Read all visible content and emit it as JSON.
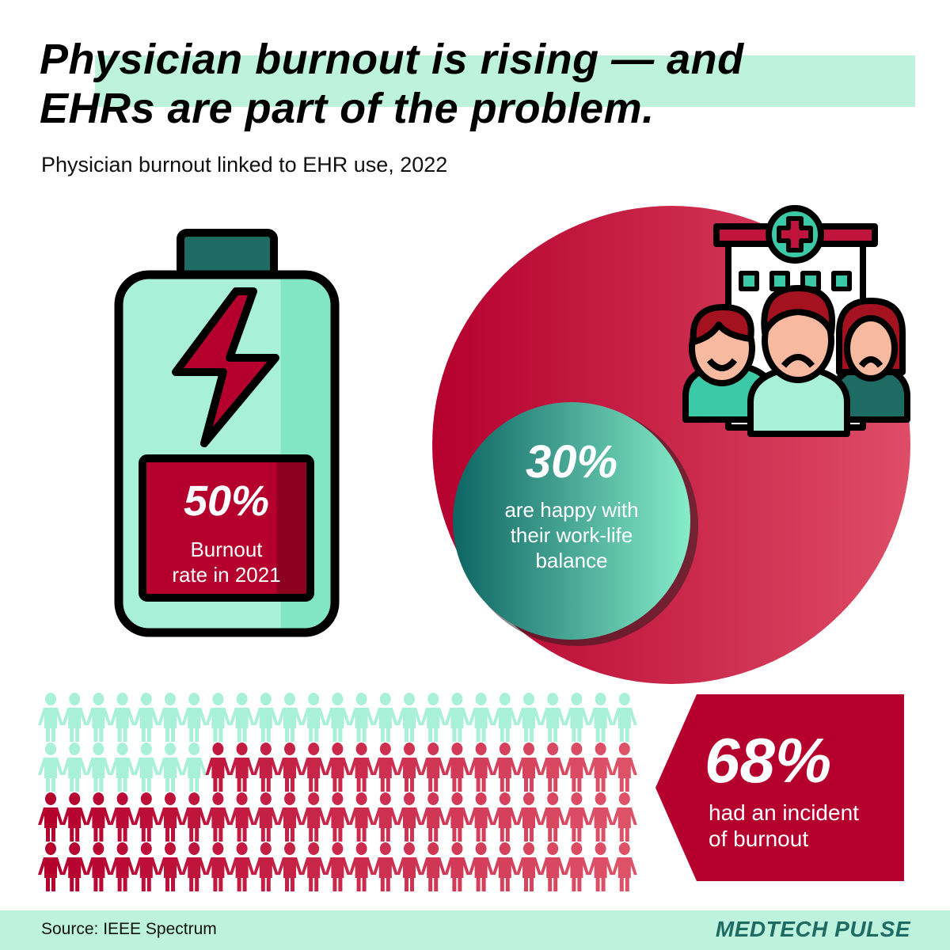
{
  "header": {
    "title_line1": "Physician burnout is rising — and",
    "title_line2": "EHRs are part of the problem.",
    "subtitle": "Physician burnout linked to EHR use, 2022"
  },
  "battery_stat": {
    "value": "50%",
    "label_line1": "Burnout",
    "label_line2": "rate in 2021",
    "icon": "battery-lightning-icon"
  },
  "circle_stat": {
    "value": "30%",
    "label_line1": "are happy with",
    "label_line2": "their work-life",
    "label_line3": "balance",
    "icon": "doctors-hospital-icon"
  },
  "pictogram": {
    "total": 100,
    "burnout_count": 68,
    "not_burnout_count": 32,
    "columns": 25,
    "rows": 4,
    "icon": "person-icon"
  },
  "burnout_stat": {
    "value": "68%",
    "label_line1": "had an incident",
    "label_line2": "of burnout"
  },
  "footer": {
    "source": "Source: IEEE Spectrum",
    "brand": "MEDTECH PULSE"
  },
  "colors": {
    "mint": "#a8f0d8",
    "mint_band": "#bdf2dd",
    "teal": "#1e6b64",
    "crimson": "#b5002e",
    "crimson_light": "#d94560"
  }
}
